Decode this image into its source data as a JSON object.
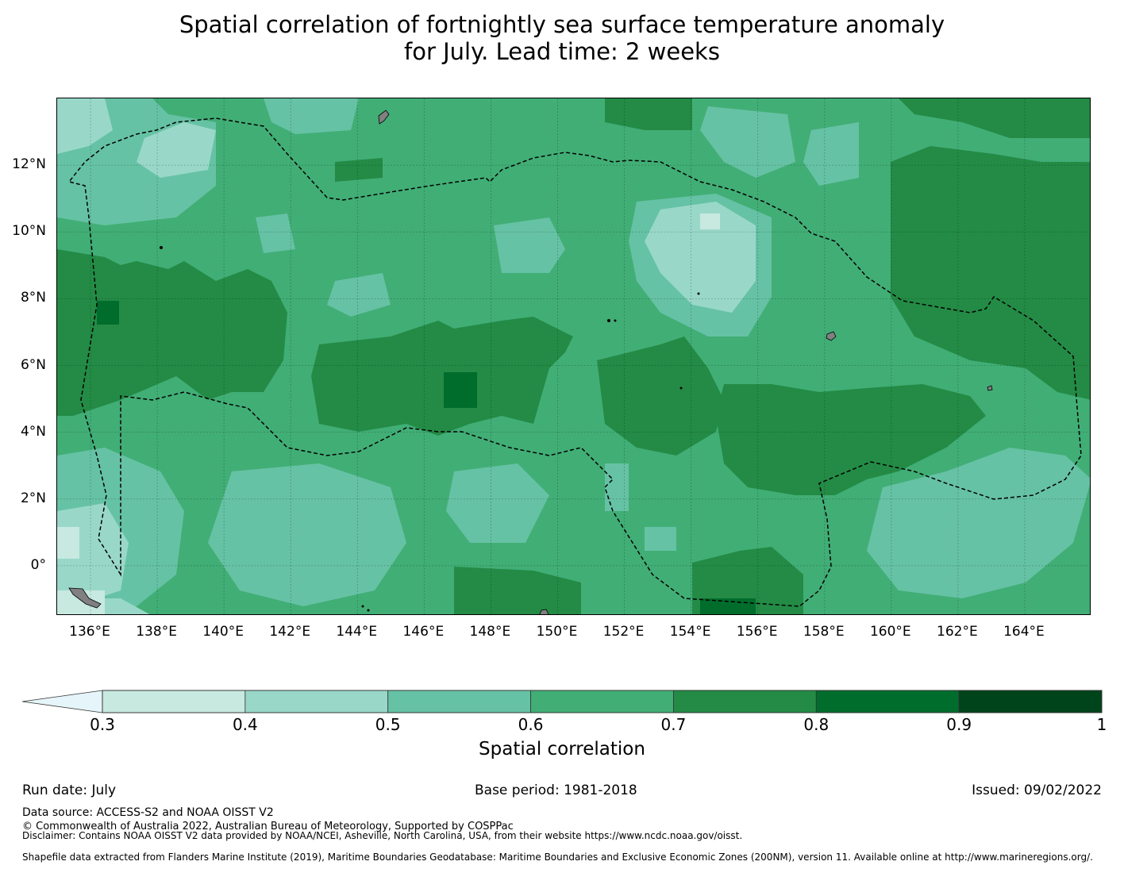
{
  "title_line1": "Spatial correlation of fortnightly sea surface temperature anomaly",
  "title_line2": "for July. Lead time: 2 weeks",
  "map": {
    "lon_range": [
      135,
      166
    ],
    "lat_range": [
      -1.5,
      14
    ],
    "lat_ticks": [
      "12°N",
      "10°N",
      "8°N",
      "6°N",
      "4°N",
      "2°N",
      "0°"
    ],
    "lat_values": [
      12,
      10,
      8,
      6,
      4,
      2,
      0
    ],
    "lon_ticks": [
      "136°E",
      "138°E",
      "140°E",
      "142°E",
      "144°E",
      "146°E",
      "148°E",
      "150°E",
      "152°E",
      "154°E",
      "156°E",
      "158°E",
      "160°E",
      "162°E",
      "164°E"
    ],
    "lon_values": [
      136,
      138,
      140,
      142,
      144,
      146,
      148,
      150,
      152,
      154,
      156,
      158,
      160,
      162,
      164
    ],
    "field": "spatial correlation",
    "eez_boundary": "dashed black line",
    "land_color": "#808080"
  },
  "colorbar": {
    "label": "Spatial correlation",
    "ticks": [
      "0.3",
      "0.4",
      "0.5",
      "0.6",
      "0.7",
      "0.8",
      "0.9",
      "1"
    ],
    "colors": [
      "#c7e9e0",
      "#99d8c9",
      "#66c2a4",
      "#41ae76",
      "#238b45",
      "#006d2c",
      "#00441b"
    ],
    "under_color": "#e5f5f9"
  },
  "footer": {
    "run_date": "Run date: July",
    "base_period": "Base period: 1981-2018",
    "issued": "Issued: 09/02/2022",
    "data_source": "Data source: ACCESS-S2 and NOAA OISST V2",
    "copyright": "© Commonwealth of Australia 2022, Australian Bureau of Meteorology, Supported by COSPPac",
    "disclaimer": "Disclaimer: Contains NOAA OISST V2 data provided by NOAA/NCEI, Asheville, North Carolina, USA, from their website https://www.ncdc.noaa.gov/oisst.",
    "shapefile": "Shapefile data extracted from Flanders Marine Institute (2019), Maritime Boundaries Geodatabase: Maritime Boundaries and Exclusive Economic Zones (200NM), version 11. Available online at http://www.marineregions.org/."
  }
}
